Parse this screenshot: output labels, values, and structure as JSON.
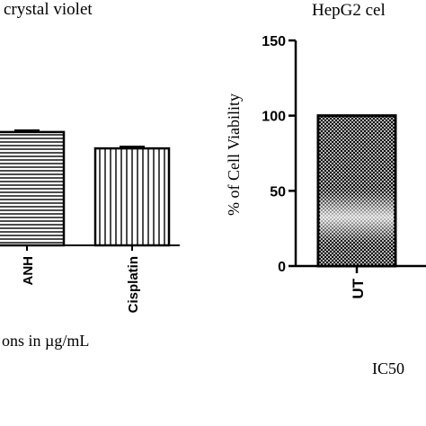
{
  "chart_data": [
    {
      "type": "bar",
      "title": "crystal violet",
      "xlabel": "ons in µg/mL",
      "categories": [
        "ANH",
        "Cisplatin"
      ],
      "values": [
        97,
        83
      ],
      "errors": [
        1.5,
        1.5
      ],
      "patterns": [
        "horizontal-lines",
        "vertical-lines"
      ]
    },
    {
      "type": "bar",
      "title": "HepG2 cel",
      "xlabel": "IC50",
      "ylabel": "% of Cell Viability",
      "ylim": [
        0,
        150
      ],
      "yticks": [
        "0",
        "50",
        "100",
        "150"
      ],
      "categories": [
        "UT"
      ],
      "values": [
        100
      ],
      "errors": [
        0
      ],
      "patterns": [
        "crosshatch"
      ]
    }
  ]
}
